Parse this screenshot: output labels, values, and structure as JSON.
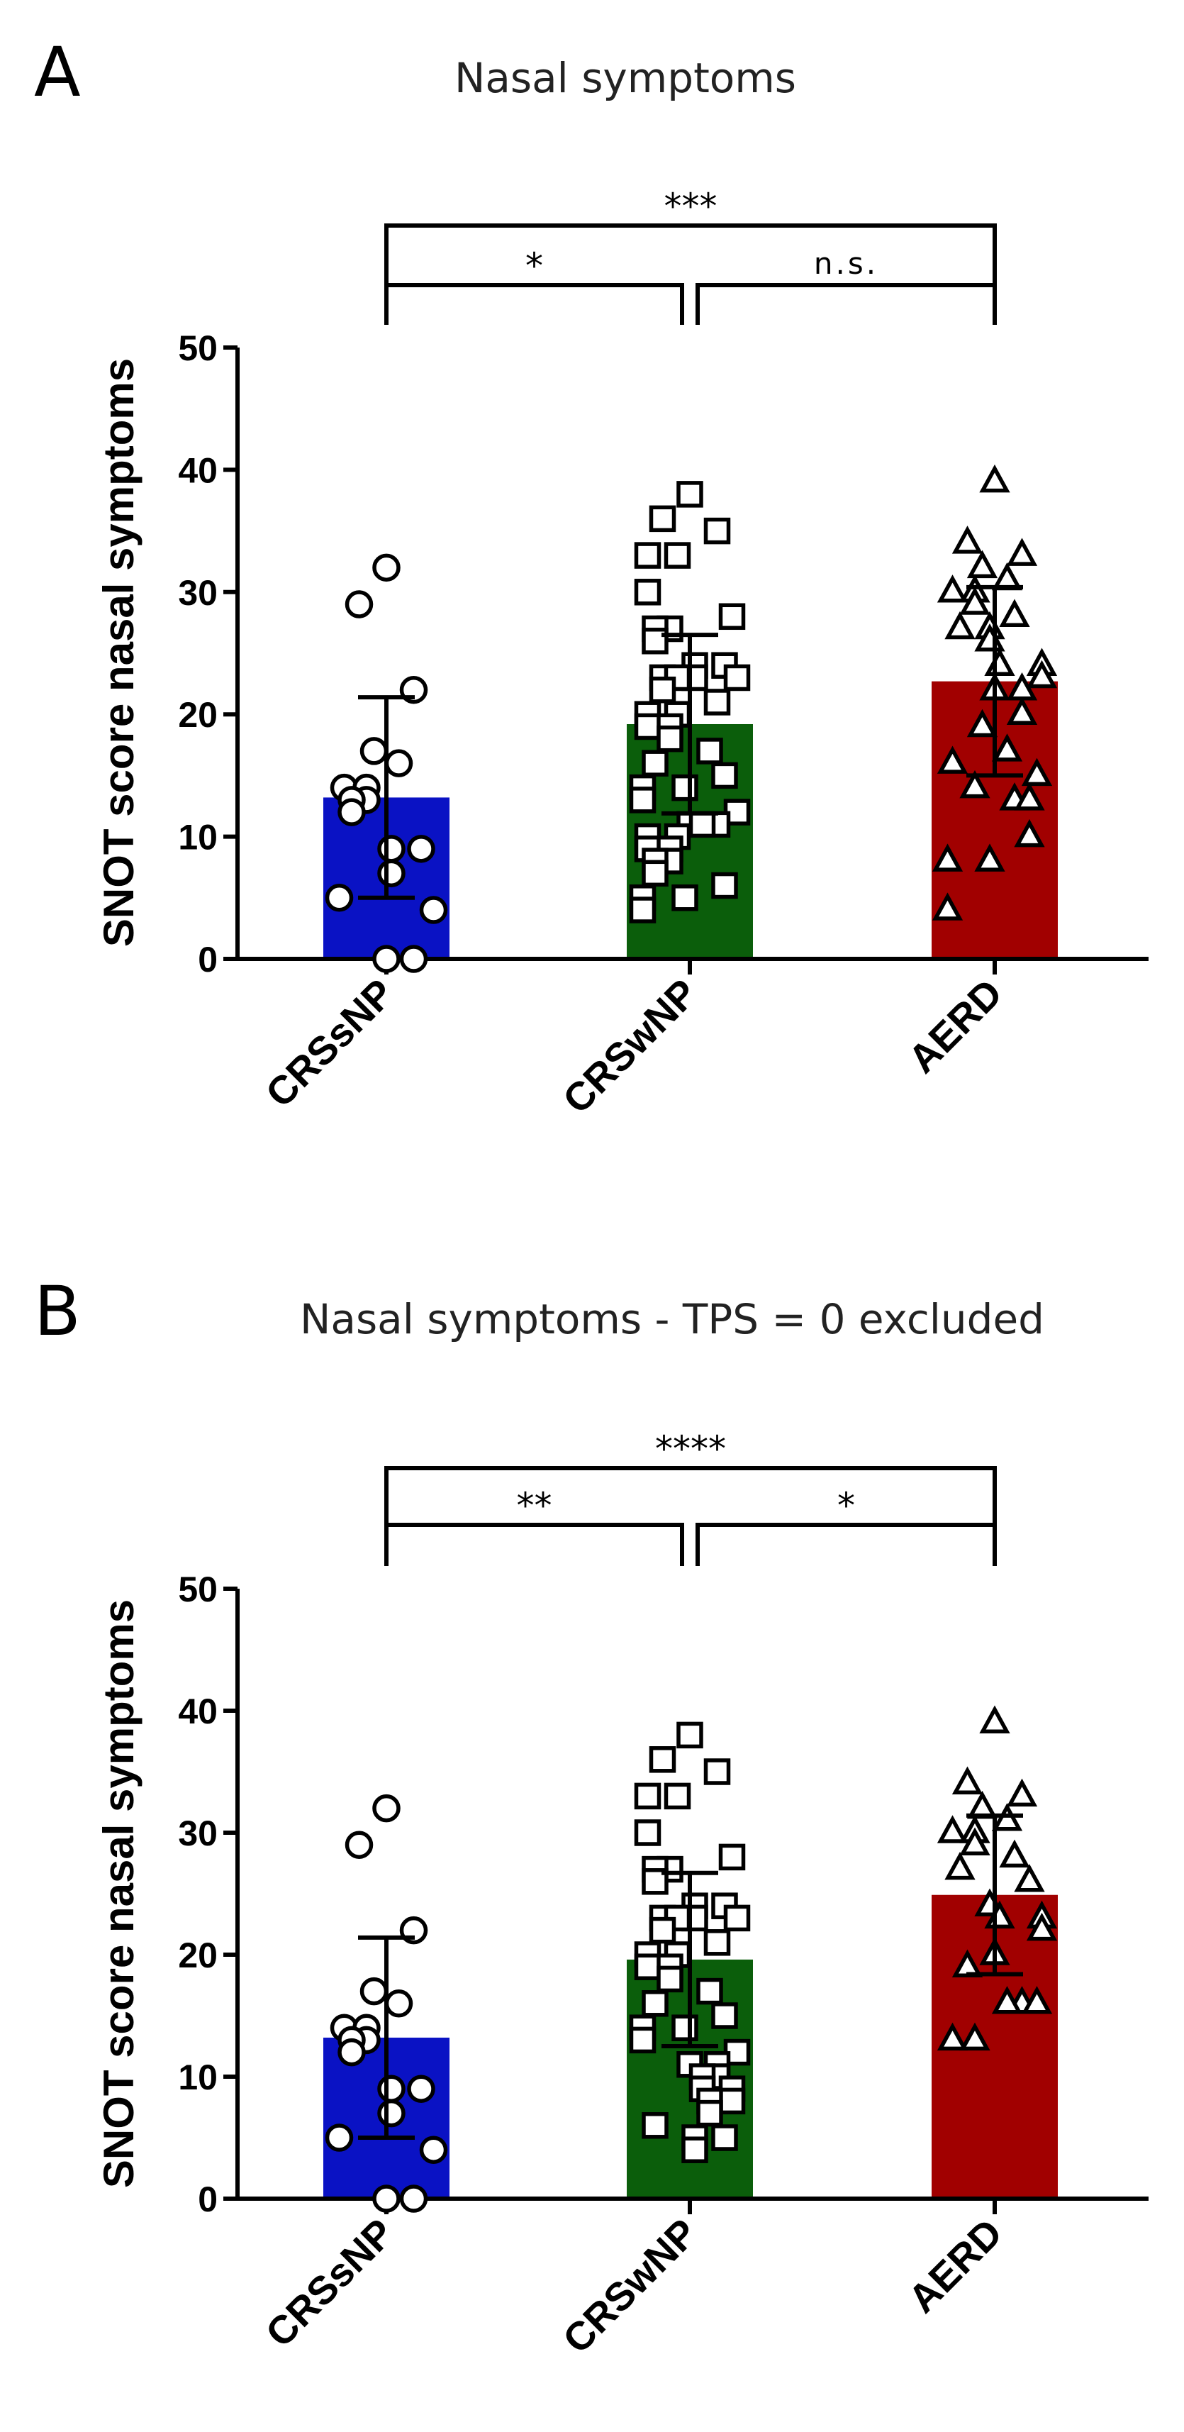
{
  "colors": {
    "CRSsNP": "#0a12c4",
    "CRSwNP": "#0b5e0b",
    "AERD": "#a10000"
  },
  "chart_data": [
    {
      "type": "bar",
      "panel_label": "A",
      "title": "Nasal symptoms",
      "ylabel": "SNOT score nasal symptoms",
      "ylim": [
        0,
        50
      ],
      "yticks": [
        0,
        10,
        20,
        30,
        40,
        50
      ],
      "categories": [
        "CRSsNP",
        "CRSwNP",
        "AERD"
      ],
      "markers": [
        "circle",
        "square",
        "triangle"
      ],
      "values": [
        13.2,
        19.2,
        22.7
      ],
      "sd": [
        8.2,
        7.3,
        7.7
      ],
      "points": [
        [
          32,
          29,
          22,
          17,
          16,
          14,
          14,
          13,
          13,
          12,
          9,
          9,
          7,
          5,
          4,
          0,
          0
        ],
        [
          38,
          36,
          35,
          33,
          33,
          30,
          28,
          27,
          27,
          26,
          24,
          24,
          23,
          23,
          23,
          23,
          22,
          21,
          20,
          20,
          19,
          19,
          18,
          17,
          16,
          15,
          14,
          14,
          13,
          12,
          11,
          11,
          11,
          10,
          10,
          9,
          9,
          8,
          8,
          7,
          6,
          5,
          5,
          4
        ],
        [
          39,
          34,
          33,
          32,
          31,
          30,
          30,
          29,
          28,
          27,
          27,
          26,
          24,
          24,
          23,
          22,
          22,
          20,
          19,
          17,
          16,
          15,
          14,
          13,
          13,
          10,
          8,
          8,
          4
        ]
      ],
      "significance": [
        {
          "from": 0,
          "to": 2,
          "label": "***",
          "level": 2
        },
        {
          "from": 0,
          "to": 1,
          "label": "*",
          "level": 1
        },
        {
          "from": 1,
          "to": 2,
          "label": "n.s.",
          "level": 1
        }
      ]
    },
    {
      "type": "bar",
      "panel_label": "B",
      "title": "Nasal symptoms - TPS = 0 excluded",
      "ylabel": "SNOT score nasal symptoms",
      "ylim": [
        0,
        50
      ],
      "yticks": [
        0,
        10,
        20,
        30,
        40,
        50
      ],
      "categories": [
        "CRSsNP",
        "CRSwNP",
        "AERD"
      ],
      "markers": [
        "circle",
        "square",
        "triangle"
      ],
      "values": [
        13.2,
        19.6,
        24.9
      ],
      "sd": [
        8.2,
        7.1,
        6.5
      ],
      "points": [
        [
          32,
          29,
          22,
          17,
          16,
          14,
          14,
          13,
          13,
          12,
          9,
          9,
          7,
          5,
          4,
          0,
          0
        ],
        [
          38,
          36,
          35,
          33,
          33,
          30,
          28,
          27,
          27,
          26,
          24,
          24,
          23,
          23,
          23,
          23,
          22,
          21,
          20,
          20,
          19,
          19,
          18,
          17,
          16,
          15,
          14,
          14,
          13,
          12,
          11,
          11,
          10,
          10,
          9,
          9,
          8,
          8,
          7,
          6,
          5,
          5,
          4
        ],
        [
          39,
          34,
          33,
          32,
          31,
          30,
          30,
          29,
          28,
          27,
          26,
          24,
          23,
          23,
          22,
          20,
          19,
          16,
          16,
          16,
          13,
          13
        ]
      ],
      "significance": [
        {
          "from": 0,
          "to": 2,
          "label": "****",
          "level": 2
        },
        {
          "from": 0,
          "to": 1,
          "label": "**",
          "level": 1
        },
        {
          "from": 1,
          "to": 2,
          "label": "*",
          "level": 1
        }
      ]
    }
  ]
}
